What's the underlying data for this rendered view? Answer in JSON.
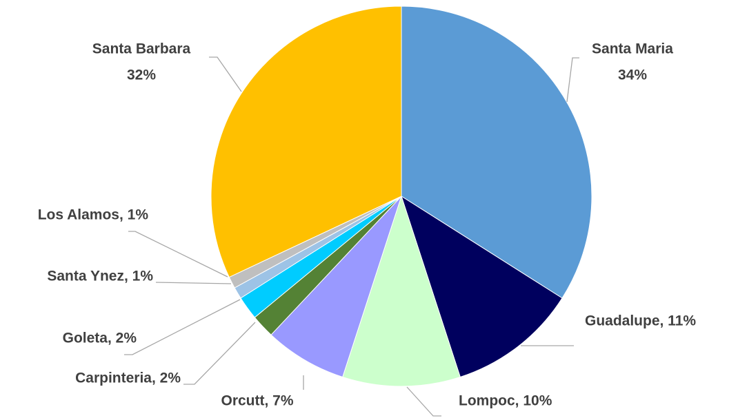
{
  "chart_data": {
    "type": "pie",
    "labels": [
      [
        "Santa Maria",
        "34%"
      ],
      [
        "Guadalupe, 11%"
      ],
      [
        "Lompoc, 10%"
      ],
      [
        "Orcutt, 7%"
      ],
      [
        "Carpinteria, 2%"
      ],
      [
        "Goleta, 2%"
      ],
      [
        "Santa Ynez, 1%"
      ],
      [
        "Los Alamos, 1%"
      ],
      [
        "Santa Barbara",
        "32%"
      ]
    ],
    "values": [
      34,
      11,
      10,
      7,
      2,
      2,
      1,
      1,
      32
    ],
    "colors": [
      "#5b9bd5",
      "#00005e",
      "#ccffcc",
      "#9999ff",
      "#548235",
      "#00ccff",
      "#9dc3e6",
      "#bfbfbf",
      "#ffc000"
    ]
  }
}
